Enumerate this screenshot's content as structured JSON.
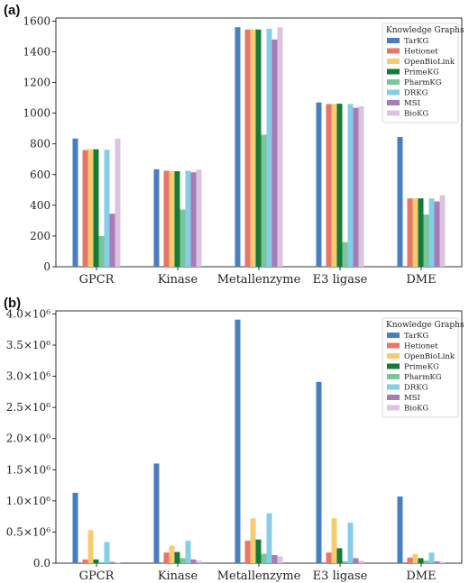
{
  "colors": {
    "TarKG": "#4a7fbf",
    "Hetionet": "#e8756a",
    "OpenBioLink": "#f7cc70",
    "PrimeKG": "#157a3a",
    "PharmKG": "#7cc49a",
    "DRKG": "#86cde8",
    "MSI": "#a77bb6",
    "BioKG": "#dcc3e0"
  },
  "chart_data": [
    {
      "type": "bar",
      "panel_label": "(a)",
      "categories": [
        "GPCR",
        "Kinase",
        "Metallenzyme",
        "E3 ligase",
        "DME"
      ],
      "legend_title": "Knowledge Graphs",
      "legend_position": "top-right",
      "ylim": [
        0,
        1620
      ],
      "yticks": [
        0,
        200,
        400,
        600,
        800,
        1000,
        1200,
        1400,
        1600
      ],
      "ytick_labels": [
        "0",
        "200",
        "400",
        "600",
        "800",
        "1000",
        "1200",
        "1400",
        "1600"
      ],
      "series": [
        {
          "name": "TarKG",
          "values": [
            835,
            635,
            1560,
            1070,
            845
          ]
        },
        {
          "name": "Hetionet",
          "values": [
            760,
            625,
            1545,
            1060,
            445
          ]
        },
        {
          "name": "OpenBioLink",
          "values": [
            765,
            622,
            1545,
            1060,
            445
          ]
        },
        {
          "name": "PrimeKG",
          "values": [
            765,
            622,
            1545,
            1062,
            445
          ]
        },
        {
          "name": "PharmKG",
          "values": [
            200,
            372,
            860,
            160,
            340
          ]
        },
        {
          "name": "DRKG",
          "values": [
            762,
            625,
            1550,
            1060,
            445
          ]
        },
        {
          "name": "MSI",
          "values": [
            345,
            615,
            1480,
            1035,
            425
          ]
        },
        {
          "name": "BioKG",
          "values": [
            835,
            632,
            1560,
            1045,
            465
          ]
        }
      ]
    },
    {
      "type": "bar",
      "panel_label": "(b)",
      "categories": [
        "GPCR",
        "Kinase",
        "Metallenzyme",
        "E3 ligase",
        "DME"
      ],
      "legend_title": "Knowledge Graphs",
      "legend_position": "top-right",
      "ylim": [
        0,
        4050000
      ],
      "yticks": [
        0,
        500000,
        1000000,
        1500000,
        2000000,
        2500000,
        3000000,
        3500000,
        4000000
      ],
      "ytick_labels": [
        "0.0",
        "0.5×10⁶",
        "1.0×10⁶",
        "1.5×10⁶",
        "2.0×10⁶",
        "2.5×10⁶",
        "3.0×10⁶",
        "3.5×10⁶",
        "4.0×10⁶"
      ],
      "series": [
        {
          "name": "TarKG",
          "values": [
            1130000,
            1600000,
            3910000,
            2910000,
            1070000
          ]
        },
        {
          "name": "Hetionet",
          "values": [
            60000,
            170000,
            360000,
            170000,
            90000
          ]
        },
        {
          "name": "OpenBioLink",
          "values": [
            530000,
            280000,
            720000,
            720000,
            150000
          ]
        },
        {
          "name": "PrimeKG",
          "values": [
            60000,
            180000,
            380000,
            240000,
            80000
          ]
        },
        {
          "name": "PharmKG",
          "values": [
            15000,
            80000,
            150000,
            30000,
            40000
          ]
        },
        {
          "name": "DRKG",
          "values": [
            340000,
            360000,
            800000,
            650000,
            170000
          ]
        },
        {
          "name": "MSI",
          "values": [
            20000,
            60000,
            130000,
            80000,
            30000
          ]
        },
        {
          "name": "BioKG",
          "values": [
            10000,
            40000,
            110000,
            40000,
            20000
          ]
        }
      ]
    }
  ]
}
